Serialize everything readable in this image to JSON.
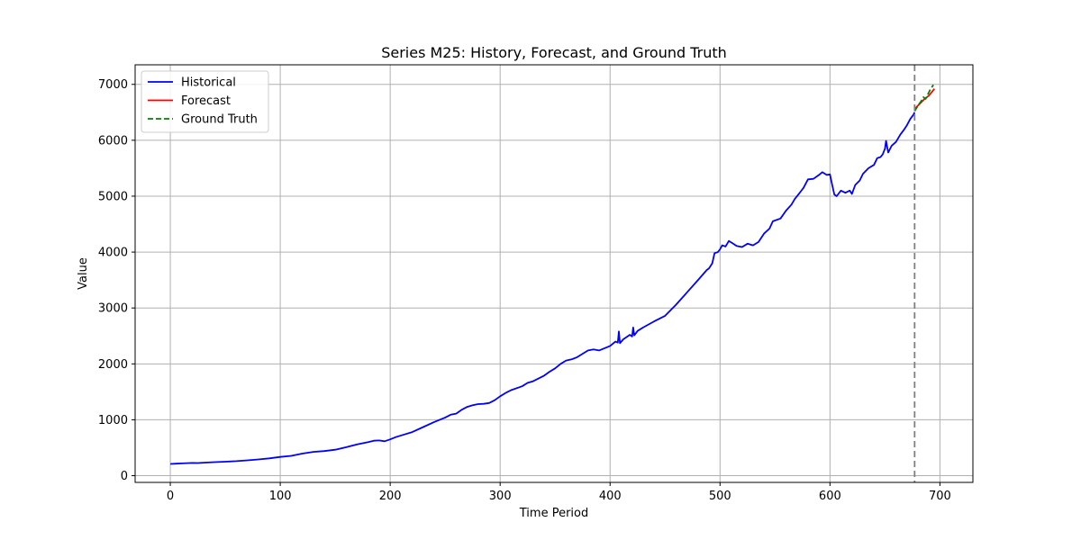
{
  "chart_data": {
    "type": "line",
    "title": "Series M25: History, Forecast, and Ground Truth",
    "xlabel": "Time Period",
    "ylabel": "Value",
    "xlim": [
      -32,
      730
    ],
    "ylim": [
      -120,
      7350
    ],
    "xticks": [
      0,
      100,
      200,
      300,
      400,
      500,
      600,
      700
    ],
    "yticks": [
      0,
      1000,
      2000,
      3000,
      4000,
      5000,
      6000,
      7000
    ],
    "grid": true,
    "legend_position": "top-left",
    "forecast_start": 677,
    "series": [
      {
        "name": "Historical",
        "color": "#0000ff",
        "style": "solid",
        "points": [
          [
            0,
            210
          ],
          [
            5,
            215
          ],
          [
            10,
            220
          ],
          [
            15,
            225
          ],
          [
            20,
            228
          ],
          [
            25,
            226
          ],
          [
            30,
            232
          ],
          [
            40,
            242
          ],
          [
            50,
            250
          ],
          [
            60,
            260
          ],
          [
            70,
            275
          ],
          [
            80,
            290
          ],
          [
            90,
            310
          ],
          [
            100,
            335
          ],
          [
            110,
            355
          ],
          [
            120,
            395
          ],
          [
            130,
            425
          ],
          [
            140,
            440
          ],
          [
            150,
            465
          ],
          [
            160,
            510
          ],
          [
            170,
            560
          ],
          [
            180,
            600
          ],
          [
            185,
            625
          ],
          [
            190,
            630
          ],
          [
            195,
            615
          ],
          [
            200,
            650
          ],
          [
            205,
            690
          ],
          [
            210,
            720
          ],
          [
            220,
            780
          ],
          [
            230,
            870
          ],
          [
            240,
            960
          ],
          [
            250,
            1040
          ],
          [
            255,
            1090
          ],
          [
            260,
            1110
          ],
          [
            265,
            1180
          ],
          [
            270,
            1230
          ],
          [
            275,
            1260
          ],
          [
            280,
            1280
          ],
          [
            285,
            1285
          ],
          [
            290,
            1300
          ],
          [
            295,
            1350
          ],
          [
            300,
            1420
          ],
          [
            305,
            1480
          ],
          [
            310,
            1530
          ],
          [
            320,
            1600
          ],
          [
            325,
            1660
          ],
          [
            330,
            1690
          ],
          [
            340,
            1790
          ],
          [
            345,
            1860
          ],
          [
            350,
            1920
          ],
          [
            355,
            2000
          ],
          [
            360,
            2060
          ],
          [
            365,
            2080
          ],
          [
            370,
            2120
          ],
          [
            375,
            2180
          ],
          [
            380,
            2240
          ],
          [
            385,
            2260
          ],
          [
            390,
            2240
          ],
          [
            395,
            2280
          ],
          [
            400,
            2320
          ],
          [
            405,
            2400
          ],
          [
            407,
            2380
          ],
          [
            408,
            2580
          ],
          [
            409,
            2370
          ],
          [
            412,
            2440
          ],
          [
            415,
            2480
          ],
          [
            418,
            2520
          ],
          [
            420,
            2490
          ],
          [
            421,
            2650
          ],
          [
            422,
            2510
          ],
          [
            425,
            2590
          ],
          [
            430,
            2650
          ],
          [
            440,
            2760
          ],
          [
            450,
            2860
          ],
          [
            460,
            3060
          ],
          [
            470,
            3280
          ],
          [
            480,
            3500
          ],
          [
            488,
            3680
          ],
          [
            490,
            3710
          ],
          [
            493,
            3800
          ],
          [
            495,
            3980
          ],
          [
            498,
            4000
          ],
          [
            500,
            4050
          ],
          [
            502,
            4120
          ],
          [
            505,
            4100
          ],
          [
            508,
            4200
          ],
          [
            512,
            4150
          ],
          [
            515,
            4110
          ],
          [
            520,
            4090
          ],
          [
            525,
            4150
          ],
          [
            530,
            4120
          ],
          [
            535,
            4180
          ],
          [
            540,
            4330
          ],
          [
            545,
            4420
          ],
          [
            548,
            4550
          ],
          [
            555,
            4600
          ],
          [
            560,
            4740
          ],
          [
            565,
            4850
          ],
          [
            568,
            4950
          ],
          [
            572,
            5050
          ],
          [
            576,
            5150
          ],
          [
            580,
            5300
          ],
          [
            585,
            5310
          ],
          [
            590,
            5380
          ],
          [
            593,
            5430
          ],
          [
            597,
            5380
          ],
          [
            600,
            5390
          ],
          [
            602,
            5200
          ],
          [
            604,
            5030
          ],
          [
            606,
            5000
          ],
          [
            610,
            5100
          ],
          [
            614,
            5060
          ],
          [
            618,
            5100
          ],
          [
            620,
            5040
          ],
          [
            623,
            5200
          ],
          [
            627,
            5280
          ],
          [
            630,
            5400
          ],
          [
            635,
            5500
          ],
          [
            640,
            5560
          ],
          [
            643,
            5680
          ],
          [
            646,
            5700
          ],
          [
            648,
            5750
          ],
          [
            650,
            5850
          ],
          [
            651,
            5990
          ],
          [
            653,
            5780
          ],
          [
            656,
            5900
          ],
          [
            660,
            5970
          ],
          [
            664,
            6100
          ],
          [
            667,
            6180
          ],
          [
            670,
            6270
          ],
          [
            673,
            6380
          ],
          [
            676,
            6460
          ],
          [
            677,
            6500
          ]
        ]
      },
      {
        "name": "Forecast",
        "color": "#ff0000",
        "style": "solid",
        "points": [
          [
            677,
            6560
          ],
          [
            681,
            6640
          ],
          [
            685,
            6720
          ],
          [
            690,
            6800
          ],
          [
            695,
            6920
          ]
        ]
      },
      {
        "name": "Ground Truth",
        "color": "#008000",
        "style": "dashed",
        "points": [
          [
            677,
            6520
          ],
          [
            680,
            6620
          ],
          [
            683,
            6700
          ],
          [
            685,
            6770
          ],
          [
            687,
            6740
          ],
          [
            689,
            6820
          ],
          [
            691,
            6900
          ],
          [
            694,
            6990
          ]
        ]
      }
    ]
  }
}
